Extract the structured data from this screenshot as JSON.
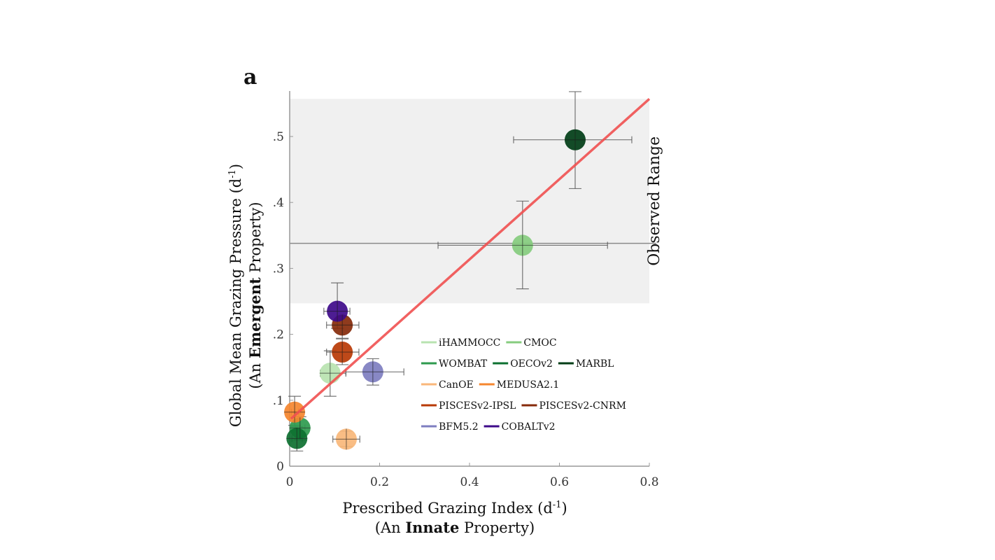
{
  "chart_data": {
    "type": "scatter",
    "panel_label": "a",
    "xlabel": {
      "line1": "Prescribed Grazing Index (d",
      "sup": "-1",
      "line1_end": ")",
      "line2_pre": "(An ",
      "line2_bold": "Innate",
      "line2_post": " Property)"
    },
    "ylabel": {
      "line1": "Global Mean Grazing Pressure (d",
      "sup": "-1",
      "line1_end": ")",
      "line2_pre": "(An ",
      "line2_bold": "Emergent",
      "line2_post": " Property)"
    },
    "xlim": [
      0,
      0.8
    ],
    "ylim": [
      0,
      0.57
    ],
    "xticks": [
      0,
      0.2,
      0.4,
      0.6,
      0.8
    ],
    "xtick_labels": [
      "0",
      "0.2",
      "0.4",
      "0.6",
      "0.8"
    ],
    "yticks": [
      0,
      0.1,
      0.2,
      0.3,
      0.4,
      0.5
    ],
    "ytick_labels": [
      "0",
      ".1",
      ".2",
      ".3",
      ".4",
      ".5"
    ],
    "grid": false,
    "observed_range": {
      "label": "Observed Range",
      "ymin": 0.247,
      "ymax": 0.557,
      "mean": 0.338,
      "color": "#f0f0f0"
    },
    "fit_line": {
      "x": [
        0.003,
        0.8
      ],
      "y": [
        0.072,
        0.557
      ],
      "color": "#f05050"
    },
    "legend_position": "lower-right",
    "series": [
      {
        "name": "iHAMMOCC",
        "color": "#b8e3b0",
        "x": 0.09,
        "y": 0.141,
        "xerr": [
          0.068,
          0.125
        ],
        "yerr": [
          0.106,
          0.175
        ]
      },
      {
        "name": "CMOC",
        "color": "#86cc7e",
        "x": 0.518,
        "y": 0.335,
        "xerr": [
          0.33,
          0.707
        ],
        "yerr": [
          0.269,
          0.402
        ]
      },
      {
        "name": "WOMBAT",
        "color": "#2e9a4e",
        "x": 0.023,
        "y": 0.058,
        "xerr": [
          0.012,
          0.034
        ],
        "yerr": [
          0.04,
          0.075
        ]
      },
      {
        "name": "OECOv2",
        "color": "#0d7030",
        "x": 0.016,
        "y": 0.042,
        "xerr": [
          0.005,
          0.028
        ],
        "yerr": [
          0.023,
          0.06
        ]
      },
      {
        "name": "MARBL",
        "color": "#003d16",
        "x": 0.635,
        "y": 0.495,
        "xerr": [
          0.498,
          0.761
        ],
        "yerr": [
          0.421,
          0.568
        ]
      },
      {
        "name": "CanOE",
        "color": "#f9b77a",
        "x": 0.126,
        "y": 0.041,
        "xerr": [
          0.096,
          0.156
        ],
        "yerr": [
          0.03,
          0.053
        ]
      },
      {
        "name": "MEDUSA2.1",
        "color": "#f5862e",
        "x": 0.011,
        "y": 0.082,
        "xerr": [
          0.004,
          0.02
        ],
        "yerr": [
          0.062,
          0.106
        ]
      },
      {
        "name": "PISCESv2-IPSL",
        "color": "#b83a05",
        "x": 0.117,
        "y": 0.173,
        "xerr": [
          0.082,
          0.154
        ],
        "yerr": [
          0.154,
          0.193
        ]
      },
      {
        "name": "PISCESv2-CNRM",
        "color": "#862a0a",
        "x": 0.117,
        "y": 0.214,
        "xerr": [
          0.082,
          0.154
        ],
        "yerr": [
          0.194,
          0.227
        ]
      },
      {
        "name": "BFM5.2",
        "color": "#7e7ec0",
        "x": 0.185,
        "y": 0.143,
        "xerr": [
          0.125,
          0.254
        ],
        "yerr": [
          0.123,
          0.163
        ]
      },
      {
        "name": "COBALTv2",
        "color": "#3e0a8a",
        "x": 0.106,
        "y": 0.235,
        "xerr": [
          0.076,
          0.134
        ],
        "yerr": [
          0.209,
          0.278
        ]
      }
    ],
    "legend_rows": [
      [
        "iHAMMOCC",
        "CMOC"
      ],
      [
        "WOMBAT",
        "OECOv2",
        "MARBL"
      ],
      [
        "CanOE",
        "MEDUSA2.1"
      ],
      [
        "PISCESv2-IPSL",
        "PISCESv2-CNRM"
      ],
      [
        "BFM5.2",
        "COBALTv2"
      ]
    ]
  }
}
